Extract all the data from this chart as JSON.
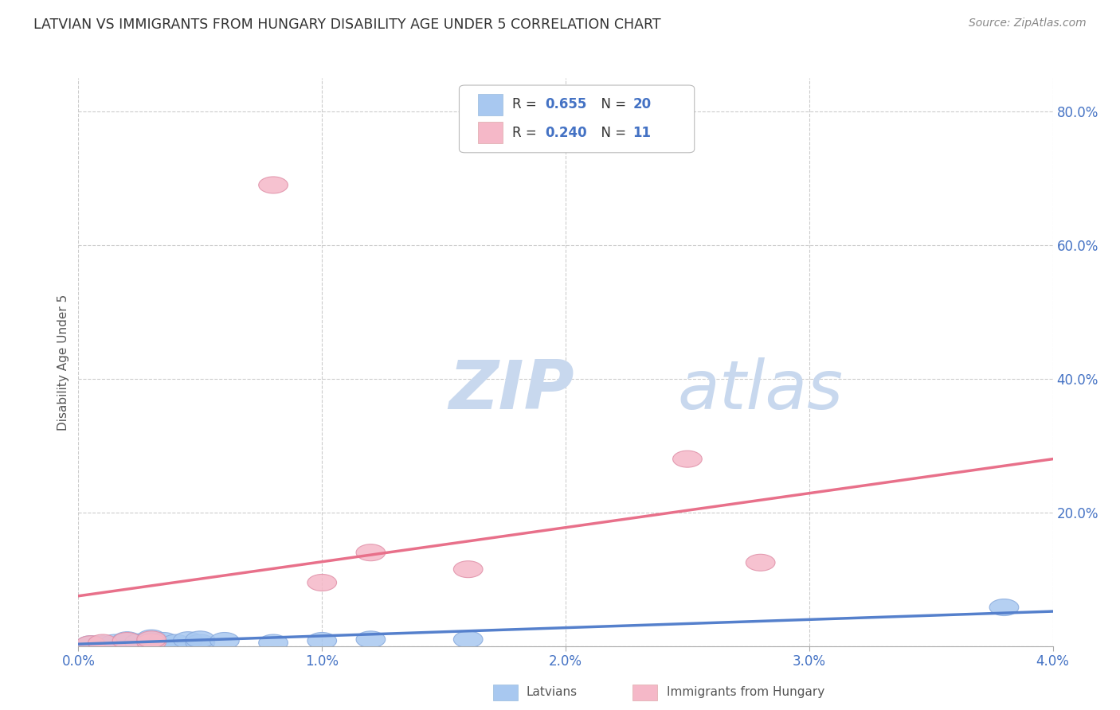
{
  "title": "LATVIAN VS IMMIGRANTS FROM HUNGARY DISABILITY AGE UNDER 5 CORRELATION CHART",
  "source": "Source: ZipAtlas.com",
  "ylabel": "Disability Age Under 5",
  "xlim": [
    0.0,
    0.04
  ],
  "ylim": [
    0.0,
    0.85
  ],
  "yticks": [
    0.0,
    0.2,
    0.4,
    0.6,
    0.8
  ],
  "ytick_labels": [
    "",
    "20.0%",
    "40.0%",
    "60.0%",
    "80.0%"
  ],
  "xticks": [
    0.0,
    0.01,
    0.02,
    0.03,
    0.04
  ],
  "xtick_labels": [
    "0.0%",
    "1.0%",
    "2.0%",
    "3.0%",
    "4.0%"
  ],
  "background_color": "#ffffff",
  "grid_color": "#cccccc",
  "latvian_color": "#a8c8f0",
  "hungary_color": "#f5b8c8",
  "latvian_line_color": "#5580cc",
  "hungary_line_color": "#e8708a",
  "latvian_r": "0.655",
  "latvian_n": "20",
  "hungary_r": "0.240",
  "hungary_n": "11",
  "latvian_points_x": [
    0.0005,
    0.001,
    0.0015,
    0.002,
    0.002,
    0.0025,
    0.003,
    0.003,
    0.003,
    0.0035,
    0.004,
    0.0045,
    0.005,
    0.005,
    0.006,
    0.008,
    0.01,
    0.012,
    0.016,
    0.038
  ],
  "latvian_points_y": [
    0.003,
    0.003,
    0.005,
    0.006,
    0.009,
    0.006,
    0.005,
    0.008,
    0.012,
    0.008,
    0.005,
    0.009,
    0.005,
    0.01,
    0.008,
    0.005,
    0.008,
    0.01,
    0.01,
    0.058
  ],
  "hungary_points_x": [
    0.0005,
    0.001,
    0.002,
    0.003,
    0.003,
    0.008,
    0.01,
    0.012,
    0.016,
    0.025,
    0.028
  ],
  "hungary_points_y": [
    0.003,
    0.005,
    0.008,
    0.006,
    0.01,
    0.69,
    0.095,
    0.14,
    0.115,
    0.28,
    0.125
  ],
  "latvian_trendline": [
    0.0,
    0.003,
    0.04,
    0.052
  ],
  "hungary_trendline": [
    0.0,
    0.075,
    0.04,
    0.28
  ],
  "watermark_zip": "ZIP",
  "watermark_atlas": "atlas",
  "watermark_color_zip": "#c8d8ee",
  "watermark_color_atlas": "#c8d8ee",
  "title_color": "#333333",
  "label_color": "#4472c4",
  "source_color": "#888888"
}
